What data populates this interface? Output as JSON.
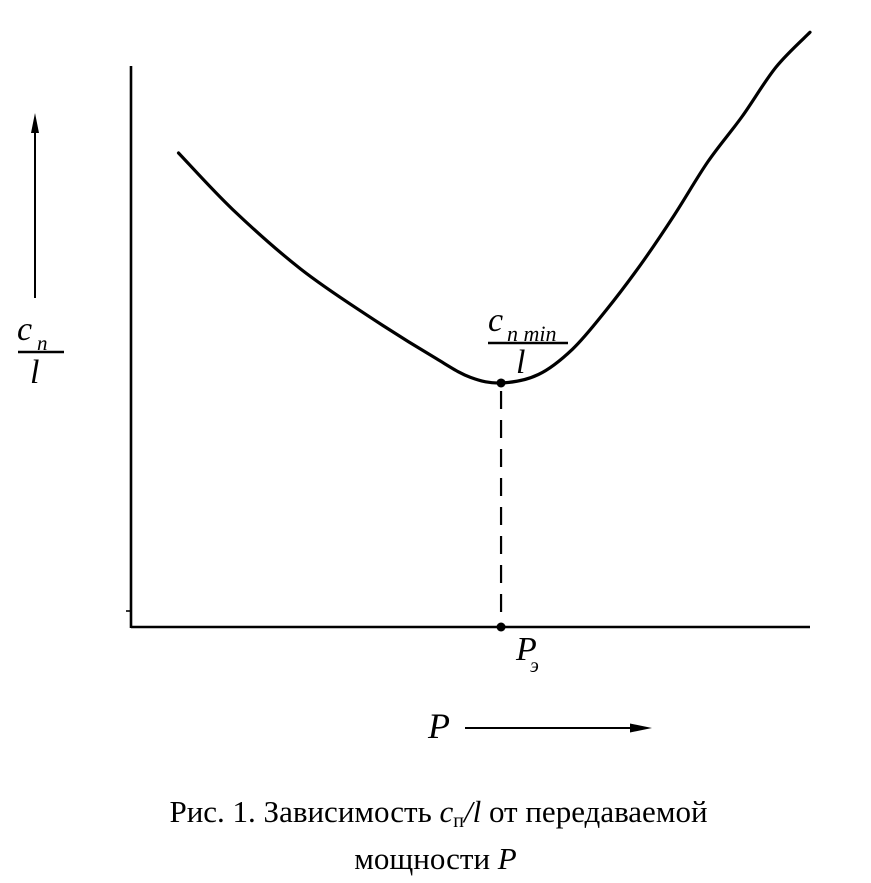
{
  "colors": {
    "ink": "#000000",
    "paper": "#ffffff"
  },
  "chart_data": {
    "type": "line",
    "xlabel": "P",
    "ylabel_numerator": "c",
    "ylabel_numerator_sub": "п",
    "ylabel_denominator": "l",
    "xlim": [
      0,
      10
    ],
    "ylim": [
      0,
      10
    ],
    "grid": false,
    "axis_arrows": true,
    "series": [
      {
        "x": [
          0.7,
          1.5,
          2.5,
          3.5,
          4.5,
          5.0,
          5.45,
          6.0,
          6.5,
          7.0,
          7.5,
          8.0,
          8.5,
          9.0,
          9.5,
          10.0
        ],
        "y": [
          8.45,
          7.44,
          6.38,
          5.54,
          4.78,
          4.45,
          4.35,
          4.5,
          4.95,
          5.65,
          6.45,
          7.34,
          8.3,
          9.1,
          9.98,
          10.6
        ]
      }
    ],
    "minimum_point": {
      "x": 5.45,
      "y": 4.35,
      "label_numerator": "c",
      "label_numerator_sub": "п min",
      "label_denominator": "l",
      "x_tick_label": "P",
      "x_tick_label_sub": "э",
      "guide": "dashed"
    }
  },
  "caption": {
    "line1_prefix": "Рис. 1. Зависимость ",
    "c": "c",
    "c_sub": "п",
    "slash_l": "/l",
    "line1_suffix": " от передаваемой",
    "line2_prefix": "мощности ",
    "line2_var": "P"
  }
}
